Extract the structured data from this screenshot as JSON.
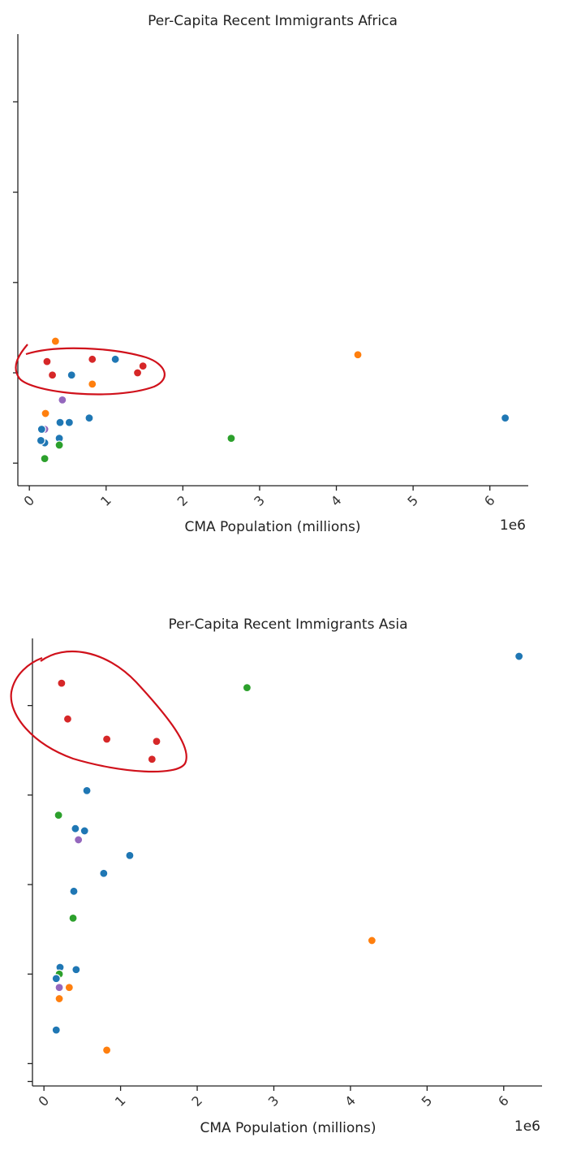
{
  "colors": {
    "blue": "#1f77b4",
    "orange": "#ff7f0e",
    "green": "#2ca02c",
    "red": "#d62728",
    "purple": "#9467bd",
    "annotation": "#d0111b"
  },
  "chart_data": [
    {
      "type": "scatter",
      "title": "Per-Capita Recent Immigrants Africa",
      "xlabel": "CMA Population (millions)",
      "x_offset_label": "1e6",
      "xlim": [
        -0.15,
        6.5
      ],
      "x_ticks": [
        0,
        1,
        2,
        3,
        4,
        5,
        6
      ],
      "x_tick_labels": [
        "0",
        "1",
        "2",
        "3",
        "4",
        "5",
        "6"
      ],
      "ylim": [
        0,
        10
      ],
      "y_ticks": [
        0.5,
        2.5,
        4.5,
        6.5,
        8.5
      ],
      "y_tick_labels_visible": false,
      "grid": false,
      "points": [
        {
          "x": 6.2,
          "y": 1.5,
          "color": "blue"
        },
        {
          "x": 4.28,
          "y": 2.9,
          "color": "orange"
        },
        {
          "x": 2.63,
          "y": 1.05,
          "color": "green"
        },
        {
          "x": 1.12,
          "y": 2.8,
          "color": "blue"
        },
        {
          "x": 1.48,
          "y": 2.65,
          "color": "red"
        },
        {
          "x": 1.41,
          "y": 2.5,
          "color": "red"
        },
        {
          "x": 0.82,
          "y": 2.8,
          "color": "red"
        },
        {
          "x": 0.82,
          "y": 2.25,
          "color": "orange"
        },
        {
          "x": 0.78,
          "y": 1.5,
          "color": "blue"
        },
        {
          "x": 0.55,
          "y": 2.45,
          "color": "blue"
        },
        {
          "x": 0.52,
          "y": 1.4,
          "color": "blue"
        },
        {
          "x": 0.43,
          "y": 1.9,
          "color": "purple"
        },
        {
          "x": 0.4,
          "y": 1.4,
          "color": "blue"
        },
        {
          "x": 0.39,
          "y": 1.05,
          "color": "blue"
        },
        {
          "x": 0.39,
          "y": 0.9,
          "color": "green"
        },
        {
          "x": 0.34,
          "y": 3.2,
          "color": "orange"
        },
        {
          "x": 0.3,
          "y": 2.45,
          "color": "red"
        },
        {
          "x": 0.23,
          "y": 2.75,
          "color": "red"
        },
        {
          "x": 0.21,
          "y": 1.6,
          "color": "orange"
        },
        {
          "x": 0.2,
          "y": 1.25,
          "color": "purple"
        },
        {
          "x": 0.2,
          "y": 0.95,
          "color": "blue"
        },
        {
          "x": 0.2,
          "y": 0.6,
          "color": "green"
        },
        {
          "x": 0.16,
          "y": 1.25,
          "color": "blue"
        },
        {
          "x": 0.15,
          "y": 1.0,
          "color": "blue"
        }
      ]
    },
    {
      "type": "scatter",
      "title": "Per-Capita Recent Immigrants Asia",
      "xlabel": "CMA Population (millions)",
      "x_offset_label": "1e6",
      "xlim": [
        -0.15,
        6.5
      ],
      "x_ticks": [
        0,
        1,
        2,
        3,
        4,
        5,
        6
      ],
      "x_tick_labels": [
        "0",
        "1",
        "2",
        "3",
        "4",
        "5",
        "6"
      ],
      "ylim": [
        0,
        10
      ],
      "y_ticks": [
        0.1,
        0.5,
        2.5,
        4.5,
        6.5,
        8.5
      ],
      "y_tick_labels_visible": false,
      "grid": false,
      "points": [
        {
          "x": 6.2,
          "y": 9.6,
          "color": "blue"
        },
        {
          "x": 2.65,
          "y": 8.9,
          "color": "green"
        },
        {
          "x": 4.28,
          "y": 3.25,
          "color": "orange"
        },
        {
          "x": 0.23,
          "y": 9.0,
          "color": "red"
        },
        {
          "x": 0.31,
          "y": 8.2,
          "color": "red"
        },
        {
          "x": 0.82,
          "y": 7.75,
          "color": "red"
        },
        {
          "x": 1.47,
          "y": 7.7,
          "color": "red"
        },
        {
          "x": 1.41,
          "y": 7.3,
          "color": "red"
        },
        {
          "x": 0.56,
          "y": 6.6,
          "color": "blue"
        },
        {
          "x": 0.19,
          "y": 6.05,
          "color": "green"
        },
        {
          "x": 0.41,
          "y": 5.75,
          "color": "blue"
        },
        {
          "x": 0.53,
          "y": 5.7,
          "color": "blue"
        },
        {
          "x": 0.45,
          "y": 5.5,
          "color": "purple"
        },
        {
          "x": 1.12,
          "y": 5.15,
          "color": "blue"
        },
        {
          "x": 0.78,
          "y": 4.75,
          "color": "blue"
        },
        {
          "x": 0.39,
          "y": 4.35,
          "color": "blue"
        },
        {
          "x": 0.38,
          "y": 3.75,
          "color": "green"
        },
        {
          "x": 0.21,
          "y": 2.65,
          "color": "blue"
        },
        {
          "x": 0.42,
          "y": 2.6,
          "color": "blue"
        },
        {
          "x": 0.2,
          "y": 2.5,
          "color": "green"
        },
        {
          "x": 0.16,
          "y": 2.4,
          "color": "blue"
        },
        {
          "x": 0.33,
          "y": 2.2,
          "color": "orange"
        },
        {
          "x": 0.2,
          "y": 2.2,
          "color": "purple"
        },
        {
          "x": 0.2,
          "y": 1.95,
          "color": "orange"
        },
        {
          "x": 0.16,
          "y": 1.25,
          "color": "blue"
        },
        {
          "x": 0.82,
          "y": 0.8,
          "color": "orange"
        }
      ]
    }
  ]
}
